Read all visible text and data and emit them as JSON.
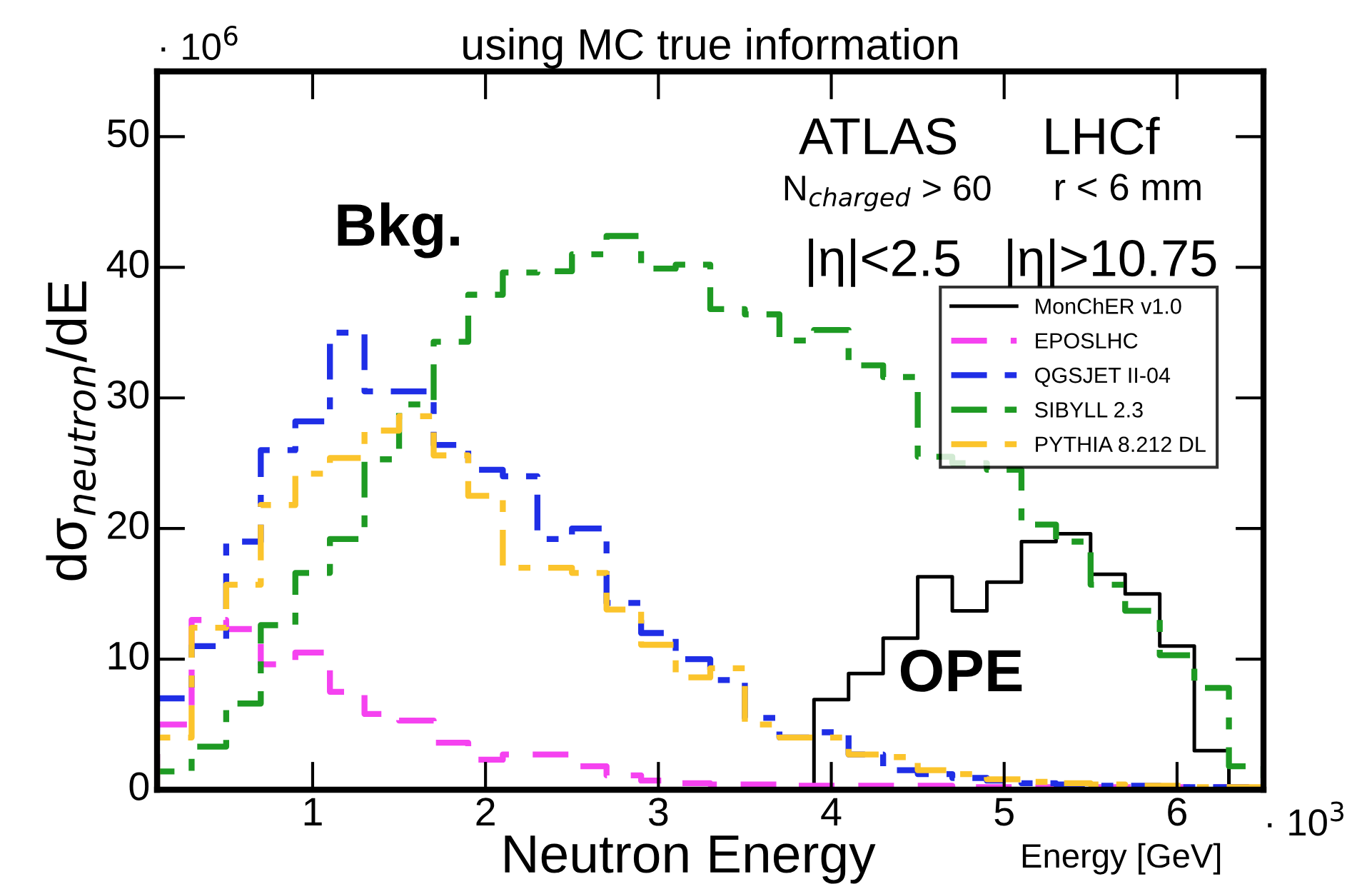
{
  "chart_data": {
    "type": "histogram",
    "title": "using MC true information",
    "xlabel": "Neutron Energy",
    "ylabel": "dσ$_{neutron}$/dE",
    "annotations": [
      "Bkg.",
      "OPE",
      "ATLAS",
      "N$_{charged}$ > 60",
      "|η|<2.5",
      "LHCf",
      "r < 6 mm",
      "|η|>10.75",
      "· 10$^{6}$",
      "· 10$^{3}$",
      "Energy [GeV]"
    ],
    "bins": [
      0.1,
      0.3,
      0.5,
      0.7,
      0.9,
      1.1,
      1.3,
      1.5,
      1.7,
      1.9,
      2.1,
      2.3,
      2.5,
      2.7,
      2.9,
      3.1,
      3.3,
      3.5,
      3.7,
      3.9,
      4.1,
      4.3,
      4.5,
      4.7,
      4.9,
      5.1,
      5.3,
      5.5,
      5.7,
      5.9,
      6.1,
      6.3,
      6.5
    ],
    "series": [
      {
        "name": "MonChER v1.0",
        "color": "#000000",
        "line_style": "solid",
        "values": [
          0,
          0,
          0,
          0,
          0,
          0,
          0,
          0,
          0,
          0,
          0,
          0,
          0,
          0,
          0,
          0,
          0,
          0,
          0,
          6.9,
          8.9,
          11.6,
          16.3,
          13.7,
          15.9,
          19,
          19.6,
          16.5,
          15,
          11,
          3,
          0
        ]
      },
      {
        "name": "EPOSLHC",
        "color": "#f542f0",
        "line_style": "dashed",
        "values": [
          5,
          13,
          12.3,
          9.6,
          10.5,
          7.5,
          5.8,
          5.3,
          3.6,
          2.3,
          2.7,
          2.7,
          1.8,
          1.1,
          0.7,
          0.5,
          0.4,
          0.4,
          0.3,
          0.3,
          0.3,
          0.3,
          0.3,
          0.2,
          0.2,
          0.2,
          0.2,
          0.2,
          0.2,
          0.2,
          0.2,
          0.2
        ]
      },
      {
        "name": "QGSJET II-04",
        "color": "#1f2ee6",
        "line_style": "dashdot",
        "values": [
          7,
          11,
          19,
          26,
          28.2,
          35,
          30.5,
          30.5,
          26.4,
          24.5,
          24,
          19.2,
          20,
          14.3,
          12,
          10,
          8.4,
          5.5,
          4,
          4.4,
          2.7,
          1.5,
          1.2,
          0.9,
          0.7,
          0.5,
          0.4,
          0.3,
          0.3,
          0.2,
          0.2,
          0.2
        ]
      },
      {
        "name": "SIBYLL 2.3",
        "color": "#1e9a23",
        "line_style": "dashdot",
        "values": [
          1.4,
          3.3,
          6.6,
          12.6,
          16.6,
          19.2,
          25.3,
          29.5,
          34.3,
          37.9,
          39.6,
          39.7,
          41,
          42.4,
          39.9,
          40.2,
          36.8,
          36.4,
          34.4,
          35.2,
          32.5,
          31.6,
          25.5,
          25,
          24.5,
          20.3,
          19,
          15.7,
          13.7,
          10.3,
          7.8,
          1.8
        ]
      },
      {
        "name": "PYTHIA 8.212 DL",
        "color": "#fbc42c",
        "line_style": "dashdot",
        "values": [
          4,
          12.4,
          15.7,
          21.8,
          24.2,
          25.4,
          27.5,
          28.6,
          25.6,
          22.5,
          17,
          17,
          16.6,
          13.8,
          11.1,
          8.6,
          9.3,
          5,
          4,
          4,
          2.7,
          2.5,
          1.5,
          1.2,
          0.8,
          0.6,
          0.5,
          0.4,
          0.3,
          0.3,
          0.2,
          0.2
        ]
      }
    ],
    "xlim": [
      0.1,
      6.5
    ],
    "xticks": [
      1,
      2,
      3,
      4,
      5,
      6
    ],
    "ylim": [
      0,
      55
    ],
    "yticks": [
      0,
      10,
      20,
      30,
      40,
      50
    ],
    "grid": false,
    "legend": "top right"
  }
}
